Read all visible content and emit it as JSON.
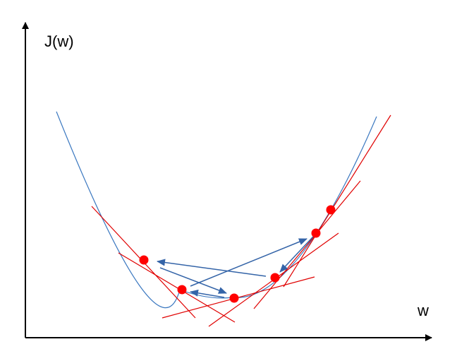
{
  "labels": {
    "y_axis": "J(w)",
    "x_axis": "w"
  },
  "colors": {
    "axis": "#000000",
    "curve": "#3b78c0",
    "tangent": "#e00000",
    "point": "#ff0000",
    "arrow": "#3464a8"
  }
}
